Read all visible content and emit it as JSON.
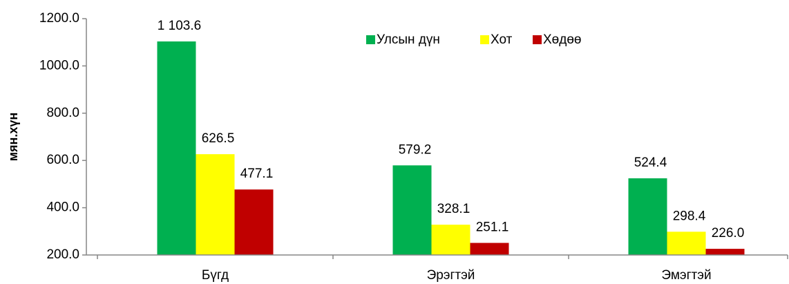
{
  "chart_data": {
    "type": "bar",
    "y_label": "мян.хүн",
    "categories": [
      "Бүгд",
      "Эрэгтэй",
      "Эмэгтэй"
    ],
    "series": [
      {
        "name": "Улсын дүн",
        "color": "#00b050",
        "values": [
          1103.6,
          579.2,
          524.4
        ],
        "value_labels": [
          "1 103.6",
          "579.2",
          "524.4"
        ]
      },
      {
        "name": "Хот",
        "color": "#ffff00",
        "values": [
          626.5,
          328.1,
          298.4
        ],
        "value_labels": [
          "626.5",
          "328.1",
          "298.4"
        ]
      },
      {
        "name": "Хөдөө",
        "color": "#c00000",
        "values": [
          477.1,
          251.1,
          226.0
        ],
        "value_labels": [
          "477.1",
          "251.1",
          "226.0"
        ]
      }
    ],
    "ylim": [
      200,
      1200
    ],
    "yticks": [
      {
        "value": 200,
        "label": "200.0"
      },
      {
        "value": 400,
        "label": "400.0"
      },
      {
        "value": 600,
        "label": "600.0"
      },
      {
        "value": 800,
        "label": "800.0"
      },
      {
        "value": 1000,
        "label": "1000.0"
      },
      {
        "value": 1200,
        "label": "1200.0"
      }
    ]
  }
}
